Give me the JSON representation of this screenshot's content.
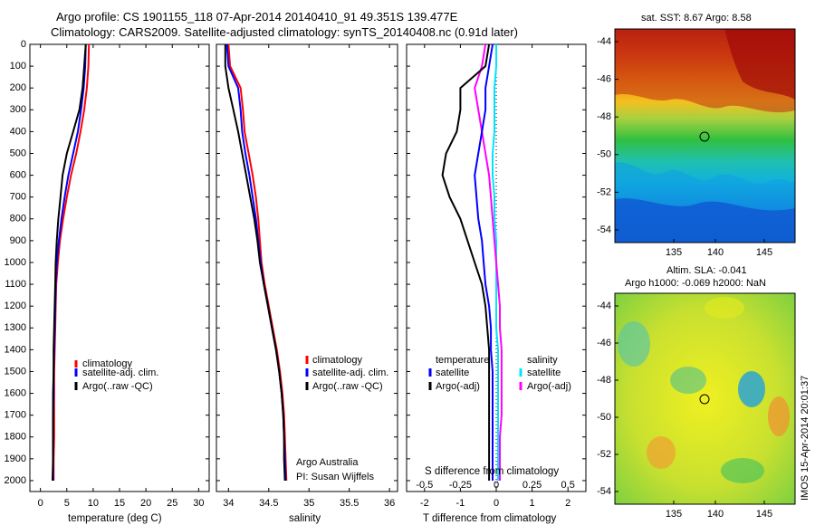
{
  "header": {
    "title_line1": "Argo profile: CS 1901155_118 07-Apr-2014 20140410_91 49.351S 139.477E",
    "title_line2": "Climatology: CARS2009. Satellite-adjusted climatology: synTS_20140408.nc (0.91d later)"
  },
  "colors": {
    "climatology": "#ff0000",
    "satellite": "#0000ff",
    "argo": "#000000",
    "satellite_s": "#00e5ff",
    "argo_s": "#ff00ff"
  },
  "depth_axis": {
    "ylim": [
      0,
      2050
    ],
    "ticks": [
      0,
      100,
      200,
      300,
      400,
      500,
      600,
      700,
      800,
      900,
      1000,
      1100,
      1200,
      1300,
      1400,
      1500,
      1600,
      1700,
      1800,
      1900,
      2000
    ]
  },
  "panels": {
    "temperature": {
      "xlabel": "temperature (deg C)",
      "xticks": [
        "0",
        "5",
        "10",
        "15",
        "20",
        "25",
        "30"
      ],
      "legend": [
        "climatology",
        "satellite-adj. clim.",
        "Argo(..raw -QC)"
      ]
    },
    "salinity": {
      "xlabel": "salinity",
      "xticks": [
        "34",
        "34.5",
        "35",
        "35.5",
        "36"
      ],
      "legend": [
        "climatology",
        "satellite-adj. clim.",
        "Argo(..raw -QC)"
      ],
      "credit1": "Argo Australia",
      "credit2": "PI: Susan Wijffels"
    },
    "difference": {
      "xlabel": "T difference from climatology",
      "xlabel_top": "S difference from climatology",
      "xticks": [
        "-2",
        "-1",
        "0",
        "1",
        "2"
      ],
      "xticks_top": [
        "-0.5",
        "-0.25",
        "0",
        "0.25",
        "0.5"
      ],
      "legend_t_title": "temperature",
      "legend_t": [
        "satellite",
        "Argo(-adj)"
      ],
      "legend_s_title": "salinity",
      "legend_s": [
        "satellite",
        "Argo(-adj)"
      ]
    },
    "map_sst": {
      "title": "sat. SST: 8.67 Argo: 8.58",
      "yticks": [
        "-44",
        "-46",
        "-48",
        "-50",
        "-52",
        "-54"
      ],
      "xticks": [
        "135",
        "140",
        "145"
      ]
    },
    "map_sla": {
      "title1": "Altim. SLA: -0.041",
      "title2": "Argo h1000: -0.069 h2000: NaN",
      "yticks": [
        "-44",
        "-46",
        "-48",
        "-50",
        "-52",
        "-54"
      ],
      "xticks": [
        "135",
        "140",
        "145"
      ],
      "side_text": "IMOS 15-Apr-2014 20:01:37"
    }
  },
  "chart_data": [
    {
      "type": "line",
      "title": "",
      "xlabel": "temperature (deg C)",
      "ylabel": "",
      "xlim": [
        -2,
        32
      ],
      "ylim": [
        0,
        2050
      ],
      "series": [
        {
          "name": "climatology",
          "x": [
            9.2,
            9.1,
            8.8,
            8.3,
            7.6,
            6.8,
            5.8,
            5.0,
            4.3,
            3.7,
            3.3,
            3.0,
            2.9,
            2.8,
            2.7,
            2.6,
            2.6,
            2.6,
            2.6,
            2.5,
            2.5
          ],
          "y": [
            0,
            100,
            200,
            300,
            400,
            500,
            600,
            700,
            800,
            900,
            1000,
            1100,
            1200,
            1300,
            1400,
            1500,
            1600,
            1700,
            1800,
            1900,
            2000
          ]
        },
        {
          "name": "satellite-adj. clim.",
          "x": [
            8.6,
            8.5,
            8.2,
            7.7,
            7.1,
            6.2,
            5.3,
            4.6,
            4.0,
            3.5,
            3.1,
            2.9,
            2.8,
            2.7,
            2.6,
            2.5,
            2.5,
            2.4,
            2.4,
            2.4,
            2.4
          ],
          "y": [
            0,
            100,
            200,
            300,
            400,
            500,
            600,
            700,
            800,
            900,
            1000,
            1100,
            1200,
            1300,
            1400,
            1500,
            1600,
            1700,
            1800,
            1900,
            2000
          ]
        },
        {
          "name": "Argo(..raw -QC)",
          "x": [
            8.6,
            8.3,
            8.0,
            7.4,
            6.2,
            5.0,
            4.2,
            3.8,
            3.4,
            3.1,
            2.9,
            2.8,
            2.7,
            2.6,
            2.5,
            2.5,
            2.4,
            2.4,
            2.4,
            2.4,
            2.3
          ],
          "y": [
            0,
            100,
            200,
            300,
            400,
            500,
            600,
            700,
            800,
            900,
            1000,
            1100,
            1200,
            1300,
            1400,
            1500,
            1600,
            1700,
            1800,
            1900,
            2000
          ]
        }
      ]
    },
    {
      "type": "line",
      "title": "",
      "xlabel": "salinity",
      "ylabel": "",
      "xlim": [
        33.85,
        36.1
      ],
      "ylim": [
        0,
        2050
      ],
      "series": [
        {
          "name": "climatology",
          "x": [
            34.0,
            34.02,
            34.15,
            34.18,
            34.2,
            34.25,
            34.3,
            34.34,
            34.37,
            34.39,
            34.41,
            34.45,
            34.5,
            34.55,
            34.6,
            34.64,
            34.67,
            34.69,
            34.7,
            34.71,
            34.72
          ],
          "y": [
            0,
            100,
            200,
            300,
            400,
            500,
            600,
            700,
            800,
            900,
            1000,
            1100,
            1200,
            1300,
            1400,
            1500,
            1600,
            1700,
            1800,
            1900,
            2000
          ]
        },
        {
          "name": "satellite-adj. clim.",
          "x": [
            33.98,
            34.0,
            34.12,
            34.15,
            34.17,
            34.21,
            34.26,
            34.3,
            34.34,
            34.37,
            34.4,
            34.44,
            34.49,
            34.54,
            34.59,
            34.63,
            34.66,
            34.68,
            34.69,
            34.7,
            34.71
          ],
          "y": [
            0,
            100,
            200,
            300,
            400,
            500,
            600,
            700,
            800,
            900,
            1000,
            1100,
            1200,
            1300,
            1400,
            1500,
            1600,
            1700,
            1800,
            1900,
            2000
          ]
        },
        {
          "name": "Argo(..raw -QC)",
          "x": [
            33.96,
            33.96,
            34.0,
            34.06,
            34.12,
            34.17,
            34.22,
            34.27,
            34.32,
            34.36,
            34.39,
            34.44,
            34.49,
            34.54,
            34.59,
            34.63,
            34.66,
            34.68,
            34.69,
            34.69,
            34.7
          ],
          "y": [
            0,
            100,
            200,
            300,
            400,
            500,
            600,
            700,
            800,
            900,
            1000,
            1100,
            1200,
            1300,
            1400,
            1500,
            1600,
            1700,
            1800,
            1900,
            2000
          ]
        }
      ]
    },
    {
      "type": "line",
      "title": "",
      "xlabel": "T difference from climatology",
      "ylabel": "",
      "xlim": [
        -2.5,
        2.5
      ],
      "ylim": [
        0,
        2050
      ],
      "series": [
        {
          "name": "temperature satellite",
          "x": [
            -0.1,
            -0.2,
            -0.3,
            -0.3,
            -0.4,
            -0.5,
            -0.6,
            -0.55,
            -0.5,
            -0.4,
            -0.35,
            -0.3,
            -0.2,
            -0.15,
            -0.15,
            -0.1,
            -0.1,
            -0.1,
            -0.1,
            -0.1,
            -0.1
          ],
          "y": [
            0,
            100,
            200,
            300,
            400,
            500,
            600,
            700,
            800,
            900,
            1000,
            1100,
            1200,
            1300,
            1400,
            1500,
            1600,
            1700,
            1800,
            1900,
            2000
          ]
        },
        {
          "name": "temperature Argo(-adj)",
          "x": [
            -0.2,
            -0.3,
            -1.0,
            -1.0,
            -1.1,
            -1.4,
            -1.5,
            -1.3,
            -1.0,
            -0.8,
            -0.6,
            -0.4,
            -0.3,
            -0.25,
            -0.2,
            -0.2,
            -0.2,
            -0.2,
            -0.2,
            -0.2,
            -0.2
          ],
          "y": [
            0,
            100,
            200,
            300,
            400,
            500,
            600,
            700,
            800,
            900,
            1000,
            1100,
            1200,
            1300,
            1400,
            1500,
            1600,
            1700,
            1800,
            1900,
            2000
          ]
        },
        {
          "name": "salinity satellite",
          "x": [
            0.0,
            0.0,
            -0.05,
            -0.05,
            -0.05,
            -0.1,
            -0.1,
            -0.05,
            -0.05,
            0.0,
            0.0,
            0.0,
            0.0,
            0.0,
            0.05,
            0.05,
            0.05,
            0.05,
            0.05,
            0.05,
            0.05
          ],
          "y": [
            0,
            100,
            200,
            300,
            400,
            500,
            600,
            700,
            800,
            900,
            1000,
            1100,
            1200,
            1300,
            1400,
            1500,
            1600,
            1700,
            1800,
            1900,
            2000
          ]
        },
        {
          "name": "salinity Argo(-adj)",
          "x": [
            -0.3,
            -0.4,
            -0.6,
            -0.5,
            -0.4,
            -0.3,
            -0.2,
            -0.15,
            -0.1,
            -0.05,
            0.0,
            0.05,
            0.1,
            0.1,
            0.15,
            0.15,
            0.15,
            0.15,
            0.1,
            0.1,
            0.1
          ],
          "y": [
            0,
            100,
            200,
            300,
            400,
            500,
            600,
            700,
            800,
            900,
            1000,
            1100,
            1200,
            1300,
            1400,
            1500,
            1600,
            1700,
            1800,
            1900,
            2000
          ]
        }
      ]
    },
    {
      "type": "heatmap",
      "title": "sat. SST: 8.67 Argo: 8.58",
      "xlim": [
        132,
        147
      ],
      "ylim": [
        -55.5,
        -43.5
      ],
      "marker": {
        "x": 139.5,
        "y": -49.35
      }
    },
    {
      "type": "heatmap",
      "title": "Altim. SLA: -0.041",
      "xlim": [
        132,
        147
      ],
      "ylim": [
        -55.5,
        -43.5
      ],
      "marker": {
        "x": 139.5,
        "y": -49.35
      }
    }
  ]
}
